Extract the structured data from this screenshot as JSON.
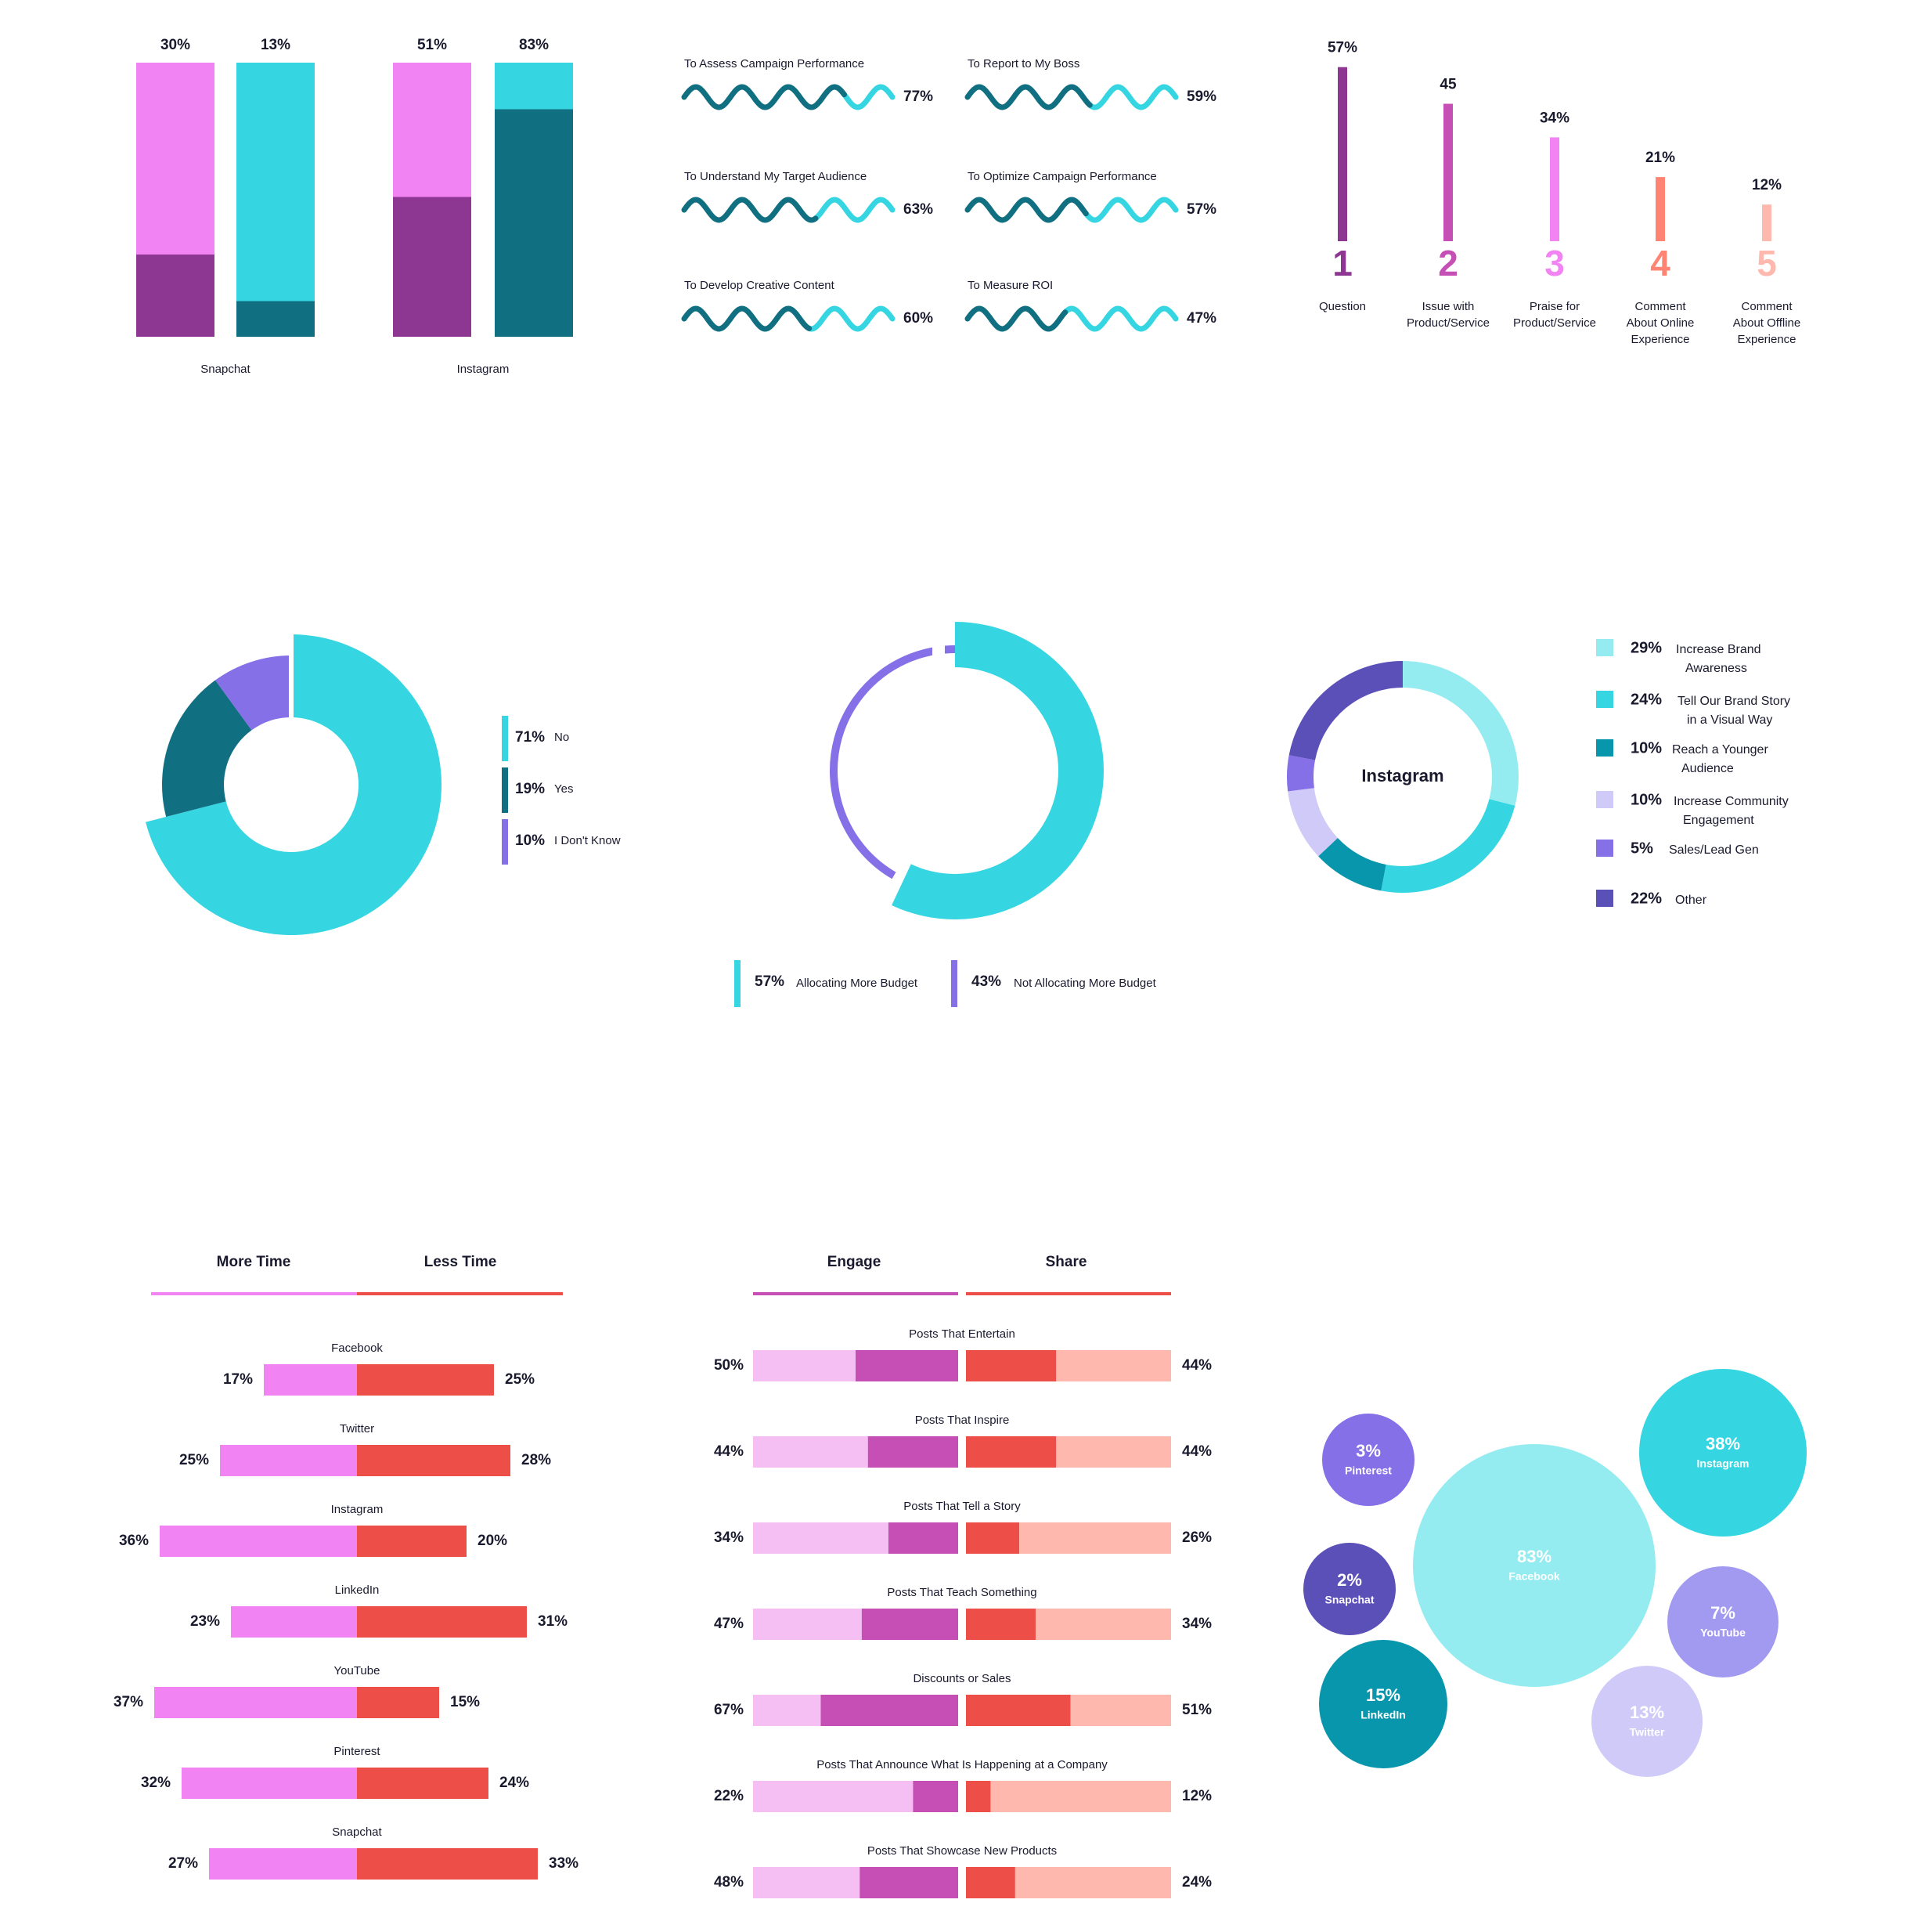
{
  "palette": {
    "pink": "#f283f2",
    "plum": "#8e3792",
    "cyan": "#35d6e2",
    "teal": "#116f82",
    "violet": "#8570e8",
    "deep_violet": "#5b4fb8",
    "light_cyan": "#94ecf1",
    "lavender": "#d0caf8",
    "dark_cyan": "#0796ab",
    "magenta": "#c64fb6",
    "coral": "#ff8473",
    "salmon": "#ffb8ae",
    "red": "#ed4e47",
    "light_pink": "#f6bff3",
    "text": "#1a1a2e"
  },
  "chart_data": [
    {
      "id": "stacked-bars",
      "type": "bar",
      "groups": [
        {
          "label": "Snapchat",
          "bars": [
            {
              "label": "30%",
              "value": 30
            },
            {
              "label": "13%",
              "value": 13
            }
          ]
        },
        {
          "label": "Instagram",
          "bars": [
            {
              "label": "51%",
              "value": 51
            },
            {
              "label": "83%",
              "value": 83
            }
          ]
        }
      ],
      "ylim": [
        0,
        100
      ]
    },
    {
      "id": "wave-progress",
      "type": "bar",
      "items": [
        {
          "label": "To Assess Campaign Performance",
          "value": 77,
          "display": "77%"
        },
        {
          "label": "To Report to My Boss",
          "value": 59,
          "display": "59%"
        },
        {
          "label": "To Understand My Target Audience",
          "value": 63,
          "display": "63%"
        },
        {
          "label": "To Optimize Campaign Performance",
          "value": 57,
          "display": "57%"
        },
        {
          "label": "To Develop Creative Content",
          "value": 60,
          "display": "60%"
        },
        {
          "label": "To Measure ROI",
          "value": 47,
          "display": "47%"
        }
      ]
    },
    {
      "id": "ranked-bars",
      "type": "bar",
      "items": [
        {
          "rank": "1",
          "label_lines": [
            "Question"
          ],
          "value": 57,
          "display": "57%"
        },
        {
          "rank": "2",
          "label_lines": [
            "Issue with",
            "Product/Service"
          ],
          "value": 45,
          "display": "45"
        },
        {
          "rank": "3",
          "label_lines": [
            "Praise for",
            "Product/Service"
          ],
          "value": 34,
          "display": "34%"
        },
        {
          "rank": "4",
          "label_lines": [
            "Comment",
            "About Online",
            "Experience"
          ],
          "value": 21,
          "display": "21%"
        },
        {
          "rank": "5",
          "label_lines": [
            "Comment",
            "About Offline",
            "Experience"
          ],
          "value": 12,
          "display": "12%"
        }
      ]
    },
    {
      "id": "donut-yes-no",
      "type": "pie",
      "slices": [
        {
          "label": "No",
          "value": 71,
          "display": "71%"
        },
        {
          "label": "Yes",
          "value": 19,
          "display": "19%"
        },
        {
          "label": "I Don't Know",
          "value": 10,
          "display": "10%"
        }
      ]
    },
    {
      "id": "ring-budget",
      "type": "pie",
      "slices": [
        {
          "label": "Allocating More Budget",
          "value": 57,
          "display": "57%"
        },
        {
          "label": "Not Allocating More Budget",
          "value": 43,
          "display": "43%"
        }
      ]
    },
    {
      "id": "donut-instagram",
      "type": "pie",
      "center_label": "Instagram",
      "slices": [
        {
          "label_lines": [
            "Increase Brand",
            "Awareness"
          ],
          "value": 29,
          "display": "29%"
        },
        {
          "label_lines": [
            "Tell Our Brand Story",
            "in a Visual Way"
          ],
          "value": 24,
          "display": "24%"
        },
        {
          "label_lines": [
            "Reach a Younger",
            "Audience"
          ],
          "value": 10,
          "display": "10%"
        },
        {
          "label_lines": [
            "Increase Community",
            "Engagement"
          ],
          "value": 10,
          "display": "10%"
        },
        {
          "label_lines": [
            "Sales/Lead Gen"
          ],
          "value": 5,
          "display": "5%"
        },
        {
          "label_lines": [
            "Other"
          ],
          "value": 22,
          "display": "22%"
        }
      ]
    },
    {
      "id": "diverging-time",
      "type": "bar",
      "headers": [
        "More Time",
        "Less Time"
      ],
      "rows": [
        {
          "label": "Facebook",
          "more": 17,
          "less": 25,
          "more_display": "17%",
          "less_display": "25%"
        },
        {
          "label": "Twitter",
          "more": 25,
          "less": 28,
          "more_display": "25%",
          "less_display": "28%"
        },
        {
          "label": "Instagram",
          "more": 36,
          "less": 20,
          "more_display": "36%",
          "less_display": "20%"
        },
        {
          "label": "LinkedIn",
          "more": 23,
          "less": 31,
          "more_display": "23%",
          "less_display": "31%"
        },
        {
          "label": "YouTube",
          "more": 37,
          "less": 15,
          "more_display": "37%",
          "less_display": "15%"
        },
        {
          "label": "Pinterest",
          "more": 32,
          "less": 24,
          "more_display": "32%",
          "less_display": "24%"
        },
        {
          "label": "Snapchat",
          "more": 27,
          "less": 33,
          "more_display": "27%",
          "less_display": "33%"
        }
      ]
    },
    {
      "id": "engage-share",
      "type": "bar",
      "headers": [
        "Engage",
        "Share"
      ],
      "rows": [
        {
          "label": "Posts That Entertain",
          "engage": 50,
          "share": 44,
          "engage_display": "50%",
          "share_display": "44%"
        },
        {
          "label": "Posts That Inspire",
          "engage": 44,
          "share": 44,
          "engage_display": "44%",
          "share_display": "44%"
        },
        {
          "label": "Posts That Tell a Story",
          "engage": 34,
          "share": 26,
          "engage_display": "34%",
          "share_display": "26%"
        },
        {
          "label": "Posts That Teach Something",
          "engage": 47,
          "share": 34,
          "engage_display": "47%",
          "share_display": "34%"
        },
        {
          "label": "Discounts or Sales",
          "engage": 67,
          "share": 51,
          "engage_display": "67%",
          "share_display": "51%"
        },
        {
          "label": "Posts That Announce What Is Happening at a Company",
          "engage": 22,
          "share": 12,
          "engage_display": "22%",
          "share_display": "12%"
        },
        {
          "label": "Posts That Showcase New Products",
          "engage": 48,
          "share": 24,
          "engage_display": "48%",
          "share_display": "24%"
        }
      ]
    },
    {
      "id": "bubbles",
      "type": "scatter",
      "bubbles": [
        {
          "label": "Facebook",
          "value": 83,
          "display": "83%"
        },
        {
          "label": "Instagram",
          "value": 38,
          "display": "38%"
        },
        {
          "label": "LinkedIn",
          "value": 15,
          "display": "15%"
        },
        {
          "label": "Twitter",
          "value": 13,
          "display": "13%"
        },
        {
          "label": "YouTube",
          "value": 7,
          "display": "7%"
        },
        {
          "label": "Pinterest",
          "value": 3,
          "display": "3%"
        },
        {
          "label": "Snapchat",
          "value": 2,
          "display": "2%"
        }
      ]
    }
  ]
}
